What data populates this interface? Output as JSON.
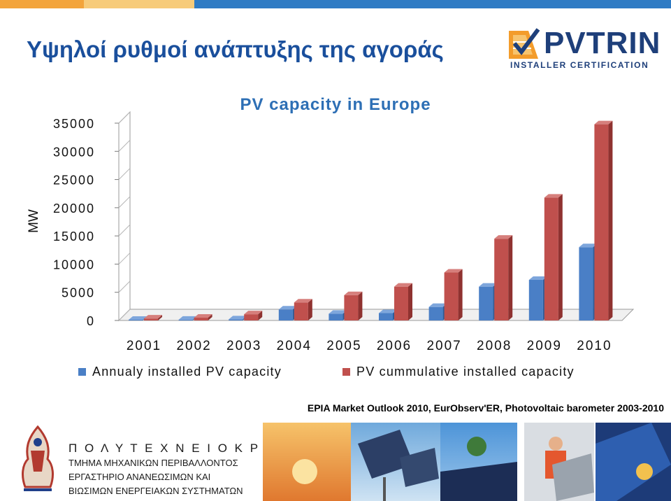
{
  "slide": {
    "title": "Υψηλοί ρυθμοί ανάπτυξης της αγοράς",
    "logo_brand": "PVTRIN",
    "logo_tagline": "INSTALLER CERTIFICATION",
    "source": "EPIA Market Outlook 2010, EurObserv'ER, Photovoltaic barometer 2003-2010"
  },
  "footer": {
    "university": "Π Ο Λ Υ Τ Ε Χ Ν Ε Ι Ο   Κ Ρ Η Τ Η Σ",
    "department": "ΤΜΗΜΑ ΜΗΧΑΝΙΚΩΝ ΠΕΡΙΒΑΛΛΟΝΤΟΣ",
    "lab_line1": "ΕΡΓΑΣΤΗΡΙΟ ΑΝΑΝΕΩΣΙΜΩΝ ΚΑΙ",
    "lab_line2": "ΒΙΩΣΙΜΩΝ ΕΝΕΡΓΕΙΑΚΩΝ ΣΥΣΤΗΜΑΤΩΝ"
  },
  "colors": {
    "title": "#1a4f9c",
    "annual": "#4a7fc6",
    "cumulative": "#c0504d",
    "chart_title": "#2d6fb5"
  },
  "chart_data": {
    "type": "bar",
    "title": "PV capacity in Europe",
    "xlabel": "",
    "ylabel": "MW",
    "categories": [
      "2001",
      "2002",
      "2003",
      "2004",
      "2005",
      "2006",
      "2007",
      "2008",
      "2009",
      "2010"
    ],
    "series": [
      {
        "name": "Annualy installed PV capacity",
        "values": [
          130,
          140,
          200,
          1950,
          1200,
          1300,
          2400,
          6000,
          7200,
          13000
        ]
      },
      {
        "name": "PV cummulative installed capacity",
        "values": [
          350,
          500,
          1100,
          3200,
          4500,
          6000,
          8500,
          14500,
          21800,
          34800
        ]
      }
    ],
    "ylim": [
      0,
      35000
    ],
    "yticks": [
      "35000",
      "30000",
      "25000",
      "20000",
      "15000",
      "10000",
      "5000",
      "0"
    ],
    "legend_position": "bottom",
    "grid": false,
    "style": "3d-bars"
  }
}
